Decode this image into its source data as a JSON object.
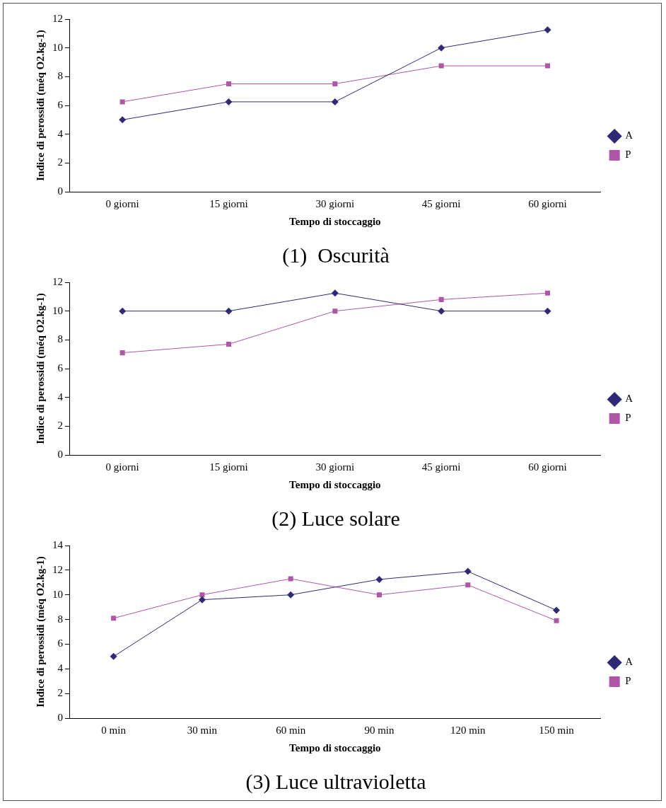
{
  "chart_data": [
    {
      "type": "line",
      "title": "(1)  Oscurità",
      "xlabel": "Tempo di stoccaggio",
      "ylabel": "Indice di perossidi (méq O2.kg-1)",
      "categories": [
        "0 giorni",
        "15 giorni",
        "30 giorni",
        "45 giorni",
        "60 giorni"
      ],
      "series": [
        {
          "name": "A",
          "color": "#2e2a75",
          "marker": "diamond",
          "values": [
            5,
            6.25,
            6.25,
            10,
            11.25
          ]
        },
        {
          "name": "P",
          "color": "#b055a8",
          "marker": "square",
          "values": [
            6.25,
            7.5,
            7.5,
            8.75,
            8.75
          ]
        }
      ],
      "ylim": [
        0,
        12
      ],
      "yticks": [
        0,
        2,
        4,
        6,
        8,
        10,
        12
      ],
      "grid": false,
      "legend": "right",
      "line_style": "solid"
    },
    {
      "type": "line",
      "title": "(2) Luce solare",
      "xlabel": "Tempo di stoccaggio",
      "ylabel": "Indice di perossidi (méq O2.kg-1)",
      "categories": [
        "0 giorni",
        "15 giorni",
        "30 giorni",
        "45 giorni",
        "60 giorni"
      ],
      "series": [
        {
          "name": "A",
          "color": "#2e2a75",
          "marker": "diamond",
          "values": [
            10,
            10,
            11.25,
            10,
            10
          ]
        },
        {
          "name": "P",
          "color": "#b055a8",
          "marker": "square",
          "values": [
            7.1,
            7.7,
            10,
            10.8,
            11.25
          ]
        }
      ],
      "ylim": [
        0,
        12
      ],
      "yticks": [
        0,
        2,
        4,
        6,
        8,
        10,
        12
      ],
      "grid": false,
      "legend": "right",
      "line_style": "solid"
    },
    {
      "type": "line",
      "title": "(3) Luce ultravioletta",
      "xlabel": "Tempo di stoccaggio",
      "ylabel": "Indice di perossidi (méq O2.kg-1)",
      "categories": [
        "0 min",
        "30 min",
        "60 min",
        "90 min",
        "120 min",
        "150 min"
      ],
      "series": [
        {
          "name": "A",
          "color": "#2e2a75",
          "marker": "diamond",
          "values": [
            5,
            9.6,
            10,
            11.25,
            11.9,
            8.75
          ]
        },
        {
          "name": "P",
          "color": "#b055a8",
          "marker": "square",
          "values": [
            8.1,
            10,
            11.3,
            10,
            10.8,
            7.9
          ]
        }
      ],
      "ylim": [
        0,
        14
      ],
      "yticks": [
        0,
        2,
        4,
        6,
        8,
        10,
        12,
        14
      ],
      "grid": false,
      "legend": "right",
      "line_style": "solid"
    }
  ]
}
